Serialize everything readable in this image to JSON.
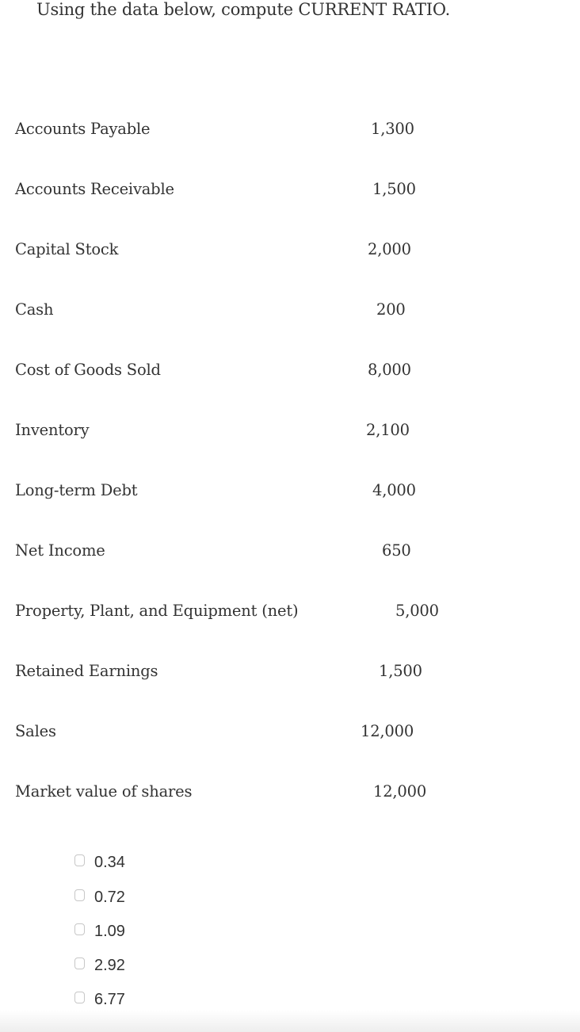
{
  "question": "Using the data below, compute CURRENT RATIO.",
  "items": [
    {
      "label": "Accounts Payable",
      "value": "1,300"
    },
    {
      "label": "Accounts Receivable",
      "value": "1,500"
    },
    {
      "label": "Capital Stock",
      "value": "2,000"
    },
    {
      "label": "Cash",
      "value": "200"
    },
    {
      "label": "Cost of Goods Sold",
      "value": "8,000"
    },
    {
      "label": "Inventory",
      "value": "2,100"
    },
    {
      "label": "Long-term Debt",
      "value": "4,000"
    },
    {
      "label": "Net Income",
      "value": "650"
    },
    {
      "label": "Property, Plant, and Equipment (net)",
      "value": "5,000"
    },
    {
      "label": "Retained Earnings",
      "value": "1,500"
    },
    {
      "label": "Sales",
      "value": "12,000"
    },
    {
      "label": "Market value of shares",
      "value": "12,000"
    }
  ],
  "options": [
    "0.34",
    "0.72",
    "1.09",
    "2.92",
    "6.77"
  ]
}
